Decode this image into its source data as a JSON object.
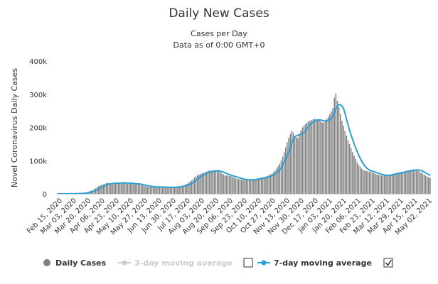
{
  "chart_data": {
    "type": "bar",
    "title": "Daily New Cases",
    "subtitle_lines": [
      "Cases per Day",
      "Data as of 0:00 GMT+0"
    ],
    "ylabel": "Novel Coronavirus Daily Cases",
    "ylim": [
      0,
      400000
    ],
    "y_ticks": [
      {
        "value": 0,
        "label": "0"
      },
      {
        "value": 100000,
        "label": "100k"
      },
      {
        "value": 200000,
        "label": "200k"
      },
      {
        "value": 300000,
        "label": "300k"
      },
      {
        "value": 400000,
        "label": "400k"
      }
    ],
    "x_tick_labels": [
      "Feb 15, 2020",
      "Mar 03, 2020",
      "Mar 20, 2020",
      "Apr 06, 2020",
      "Apr 23, 2020",
      "May 10, 2020",
      "May 27, 2020",
      "Jun 13, 2020",
      "Jun 30, 2020",
      "Jul 17, 2020",
      "Aug 03, 2020",
      "Aug 20, 2020",
      "Sep 06, 2020",
      "Sep 23, 2020",
      "Oct 10, 2020",
      "Oct 27, 2020",
      "Nov 13, 2020",
      "Nov 30, 2020",
      "Dec 17, 2020",
      "Jan 03, 2021",
      "Jan 20, 2021",
      "Feb 06, 2021",
      "Feb 23, 2021",
      "Mar 12, 2021",
      "Mar 29, 2021",
      "Apr 15, 2021",
      "May 02, 2021"
    ],
    "grid": false,
    "legend_position": "bottom",
    "colors": {
      "bars": "#808080",
      "ma7": "#2a9fd6",
      "ma3_disabled": "#cccccc",
      "text": "#333333"
    },
    "series": [
      {
        "name": "Daily Cases",
        "kind": "bar",
        "values": [
          400,
          300,
          200,
          200,
          300,
          250,
          350,
          300,
          300,
          400,
          500,
          600,
          800,
          1000,
          1300,
          1500,
          2000,
          2500,
          3500,
          4500,
          6000,
          8000,
          9500,
          11000,
          14000,
          17000,
          20000,
          23000,
          26000,
          27000,
          29000,
          30000,
          32000,
          33000,
          31000,
          30000,
          31000,
          33000,
          34000,
          33000,
          32000,
          31000,
          33000,
          34000,
          35000,
          32000,
          30000,
          30000,
          31000,
          32000,
          31000,
          30000,
          29000,
          28000,
          27000,
          26000,
          25000,
          24000,
          23000,
          22000,
          21000,
          21000,
          21000,
          21000,
          21000,
          21000,
          20000,
          20000,
          20000,
          20000,
          20000,
          20000,
          19000,
          19000,
          20000,
          20000,
          20000,
          21000,
          21000,
          22000,
          22000,
          23000,
          24000,
          26000,
          28000,
          30000,
          33000,
          36000,
          40000,
          44000,
          49000,
          53000,
          56000,
          58000,
          60000,
          62000,
          63000,
          65000,
          67000,
          70000,
          70000,
          70000,
          70000,
          69000,
          69000,
          68000,
          67000,
          65000,
          62000,
          59000,
          56000,
          55000,
          55000,
          54000,
          53000,
          51000,
          49000,
          47000,
          46000,
          45000,
          44000,
          43000,
          42000,
          42000,
          41000,
          41000,
          42000,
          42000,
          43000,
          44000,
          45000,
          46000,
          47000,
          48000,
          49000,
          50000,
          51000,
          52000,
          54000,
          56000,
          58000,
          61000,
          65000,
          70000,
          76000,
          83000,
          91000,
          100000,
          112000,
          125000,
          140000,
          155000,
          168000,
          180000,
          190000,
          185000,
          175000,
          170000,
          168000,
          180000,
          190000,
          200000,
          205000,
          210000,
          215000,
          218000,
          220000,
          222000,
          224000,
          226000,
          225000,
          222000,
          220000,
          218000,
          215000,
          215000,
          220000,
          226000,
          232000,
          240000,
          248000,
          258000,
          290000,
          302000,
          280000,
          262000,
          240000,
          220000,
          205000,
          190000,
          175000,
          162000,
          150000,
          138000,
          126000,
          115000,
          105000,
          96000,
          88000,
          82000,
          76000,
          72000,
          70000,
          69000,
          68000,
          67000,
          66000,
          64000,
          62000,
          60000,
          58000,
          57000,
          56000,
          55000,
          55000,
          55000,
          56000,
          57000,
          58000,
          59000,
          60000,
          61000,
          62000,
          63000,
          64000,
          65000,
          66000,
          67000,
          68000,
          69000,
          70000,
          71000,
          72000,
          73000,
          74000,
          73000,
          71000,
          69000,
          67000,
          64000,
          61000,
          58000,
          55000,
          52000,
          50000,
          48000
        ]
      },
      {
        "name": "3-day moving average",
        "kind": "line",
        "enabled": false
      },
      {
        "name": "7-day moving average",
        "kind": "line",
        "enabled": true
      }
    ]
  },
  "legend": {
    "daily_cases": "Daily Cases",
    "ma3": "3-day moving average",
    "ma7": "7-day moving average",
    "ma3_checked": false,
    "ma7_checked": true
  }
}
